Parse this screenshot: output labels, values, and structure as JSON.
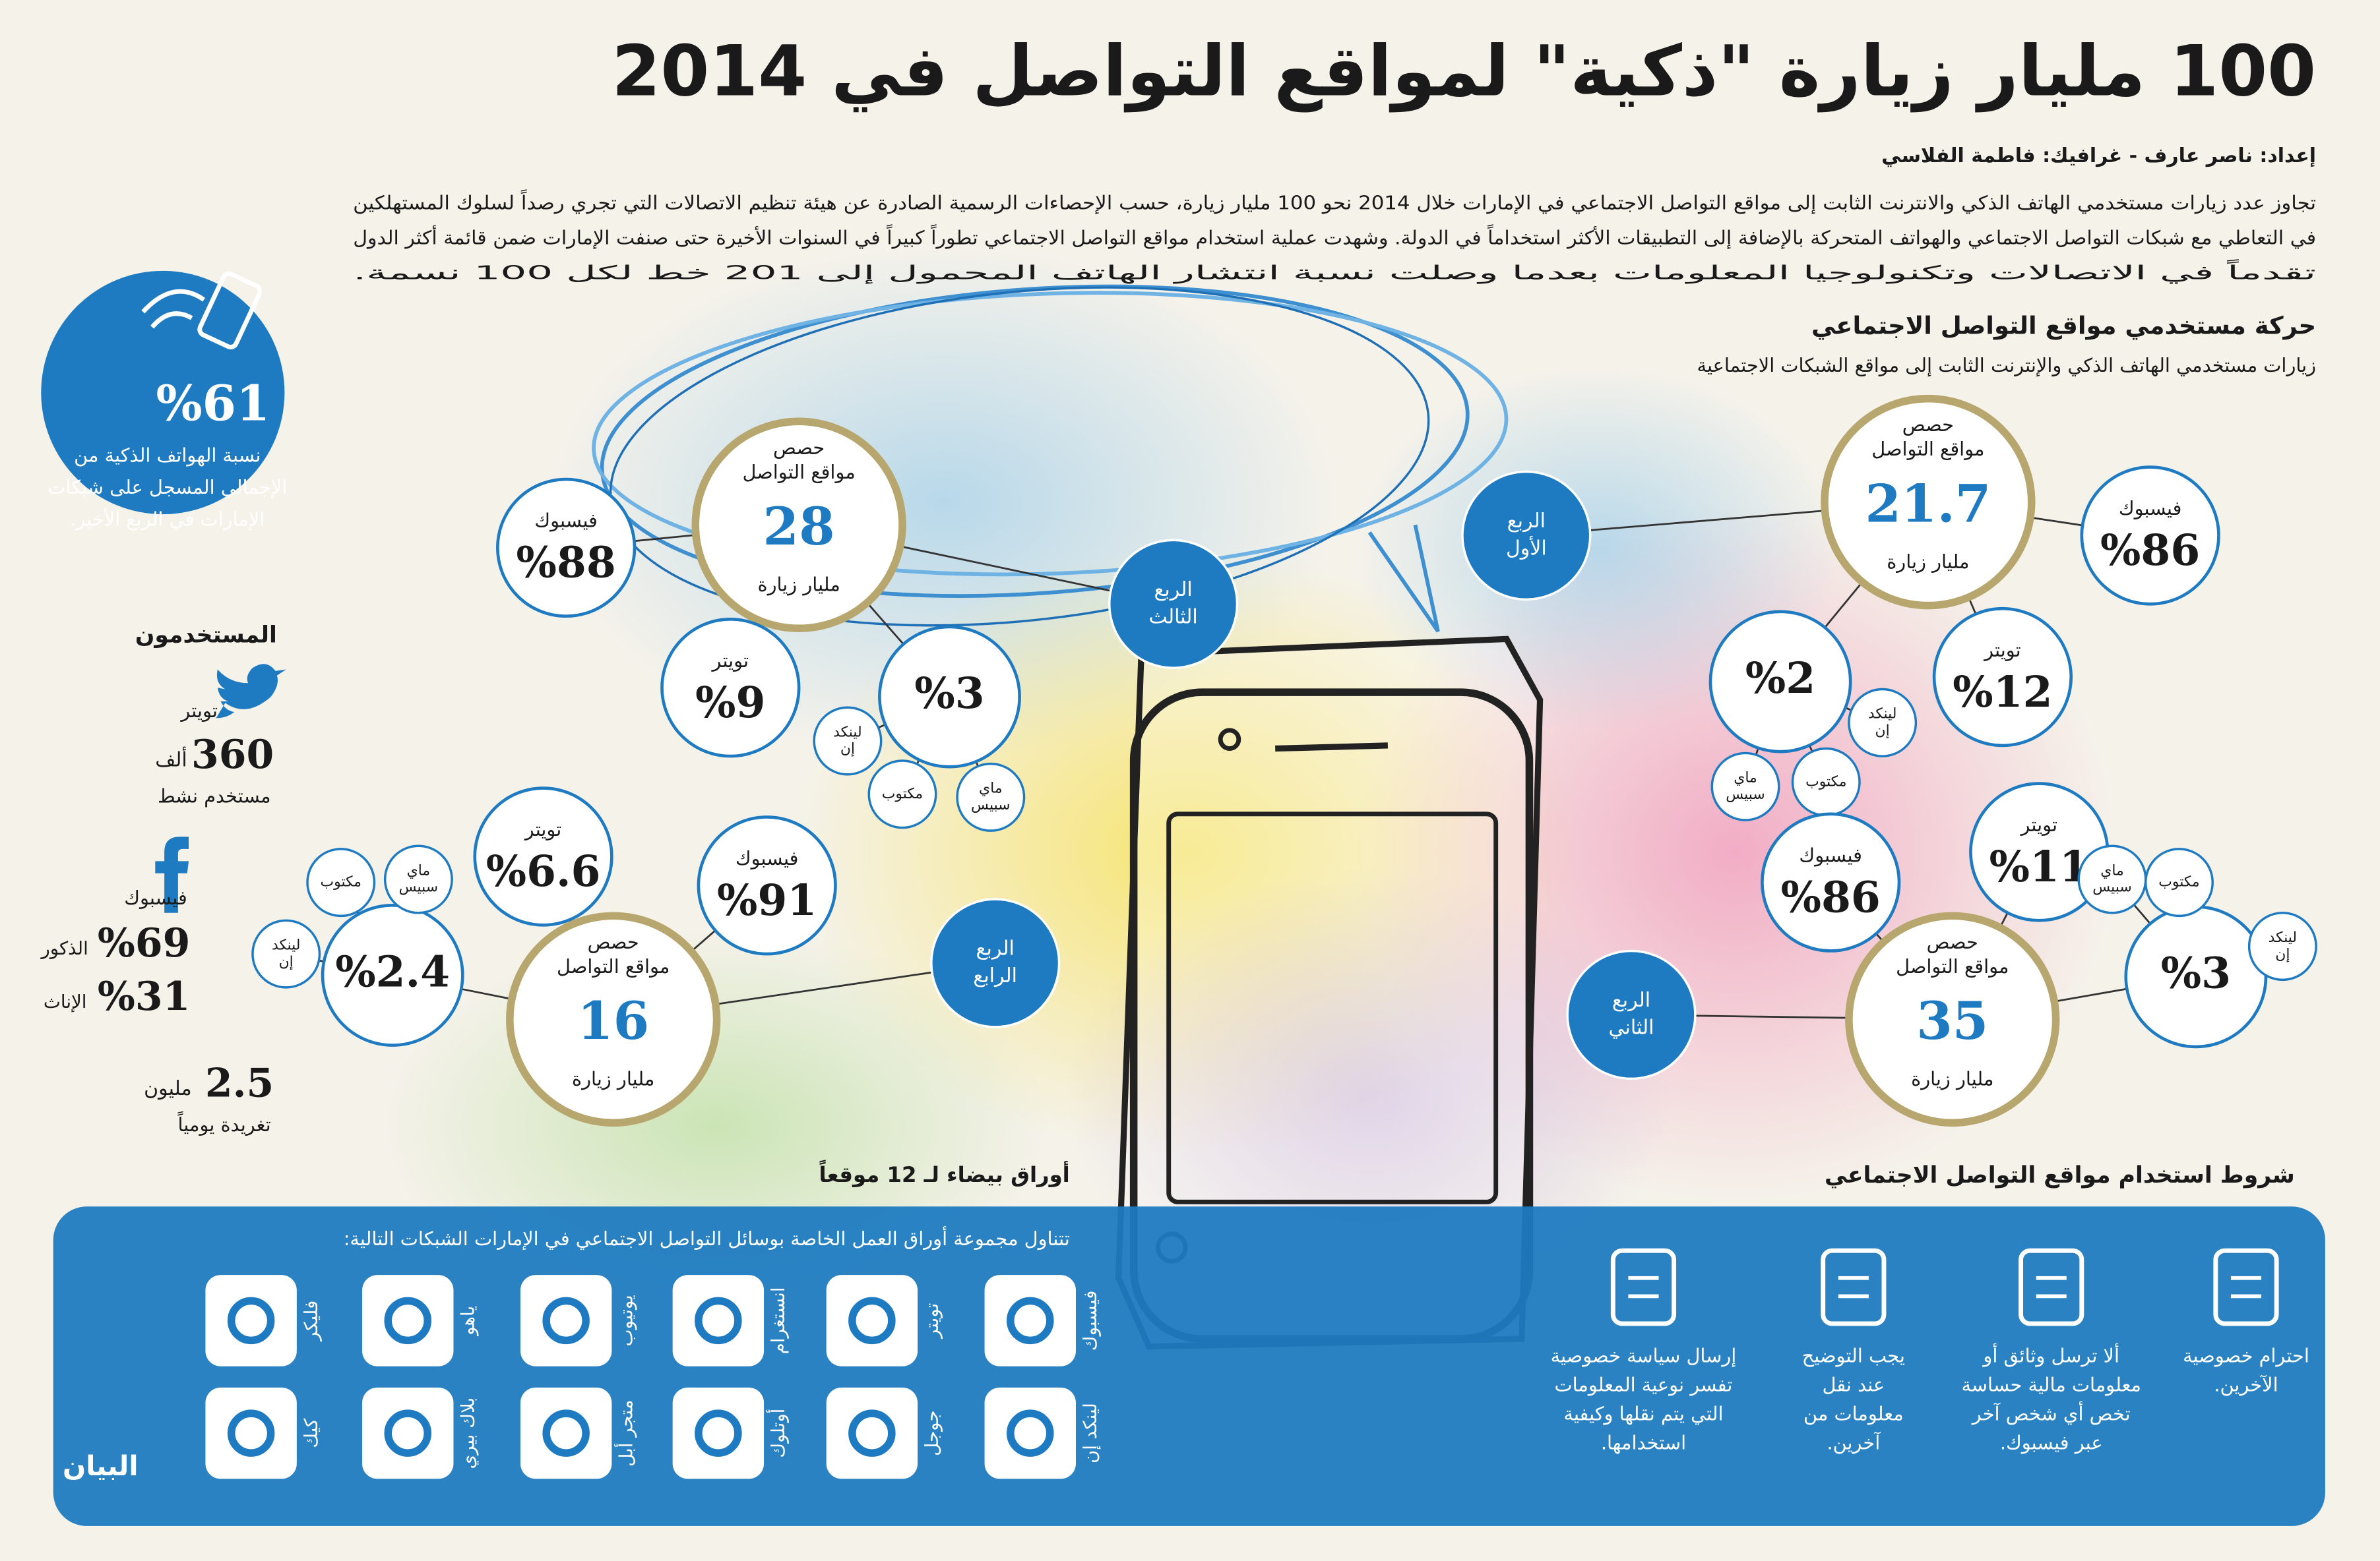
{
  "header": {
    "title": "100 مليار زيارة \"ذكية\" لمواقع التواصل في 2014",
    "credits": "إعداد: ناصر عارف - غرافيك: فاطمة الفلاسي",
    "intro": [
      "تجاوز عدد زيارات مستخدمي الهاتف الذكي والانترنت الثابت إلى مواقع التواصل الاجتماعي في الإمارات خلال 2014 نحو 100 مليار زيارة، حسب الإحصاءات الرسمية الصادرة عن هيئة تنظيم الاتصالات التي تجري رصداً لسلوك المستهلكين",
      "في التعاطي مع شبكات التواصل الاجتماعي والهواتف المتحركة بالإضافة إلى التطبيقات الأكثر استخداماً في الدولة. وشهدت عملية استخدام مواقع التواصل الاجتماعي تطوراً كبيراً في السنوات الأخيرة حتى صنفت الإمارات ضمن قائمة أكثر الدول",
      "تقدماً في الاتصالات وتكنولوجيا المعلومات بعدما وصلت نسبة انتشار الهاتف المحمول إلى 201 خط لكل 100 نسمة."
    ]
  },
  "section": {
    "title": "حركة مستخدمي مواقع التواصل الاجتماعي",
    "subtitle": "زيارات مستخدمي الهاتف الذكي والإنترنت الثابت إلى مواقع الشبكات الاجتماعية"
  },
  "quarters": [
    {
      "label": [
        "الربع",
        "الأول"
      ],
      "shares": {
        "lines": [
          "حصص",
          "مواقع التواصل"
        ],
        "value": "21.7",
        "unit": "مليار زيارة"
      },
      "facebook": {
        "name": "فيسبوك",
        "value": "%86"
      },
      "twitter": {
        "name": "تويتر",
        "value": "%12"
      },
      "others": {
        "value": "%2",
        "sites": [
          [
            "لينكد",
            "إن"
          ],
          [
            "ماي",
            "سبيس"
          ],
          [
            "مكتوب"
          ]
        ]
      }
    },
    {
      "label": [
        "الربع",
        "الثاني"
      ],
      "shares": {
        "lines": [
          "حصص",
          "مواقع التواصل"
        ],
        "value": "35",
        "unit": "مليار زيارة"
      },
      "facebook": {
        "name": "فيسبوك",
        "value": "%86"
      },
      "twitter": {
        "name": "تويتر",
        "value": "%11"
      },
      "others": {
        "value": "%3",
        "sites": [
          [
            "لينكد",
            "إن"
          ],
          [
            "ماي",
            "سبيس"
          ],
          [
            "مكتوب"
          ]
        ]
      }
    },
    {
      "label": [
        "الربع",
        "الثالث"
      ],
      "shares": {
        "lines": [
          "حصص",
          "مواقع التواصل"
        ],
        "value": "28",
        "unit": "مليار زيارة"
      },
      "facebook": {
        "name": "فيسبوك",
        "value": "%88"
      },
      "twitter": {
        "name": "تويتر",
        "value": "%9"
      },
      "others": {
        "value": "%3",
        "sites": [
          [
            "لينكد",
            "إن"
          ],
          [
            "ماي",
            "سبيس"
          ],
          [
            "مكتوب"
          ]
        ]
      }
    },
    {
      "label": [
        "الربع",
        "الرابع"
      ],
      "shares": {
        "lines": [
          "حصص",
          "مواقع التواصل"
        ],
        "value": "16",
        "unit": "مليار زيارة"
      },
      "facebook": {
        "name": "فيسبوك",
        "value": "%91"
      },
      "twitter": {
        "name": "تويتر",
        "value": "%6.6"
      },
      "others": {
        "value": "%2.4",
        "sites": [
          [
            "لينكد",
            "إن"
          ],
          [
            "ماي",
            "سبيس"
          ],
          [
            "مكتوب"
          ]
        ]
      }
    }
  ],
  "sidebar": {
    "smartphone_share": "%61",
    "smartphone_caption": [
      "نسبة الهواتف الذكية من",
      "الإجمالي المسجل على شبكات",
      "الإمارات في الربع الأخير."
    ],
    "users_title": "المستخدمون",
    "twitter": {
      "name": "تويتر",
      "value": "360",
      "unit": "ألف",
      "caption": "مستخدم نشط"
    },
    "facebook": {
      "name": "فيسبوك",
      "male_value": "%69",
      "male_label": "الذكور",
      "female_value": "%31",
      "female_label": "الإناث"
    },
    "tweets": {
      "value": "2.5",
      "unit": "مليون",
      "caption": "تغريدة يومياً"
    }
  },
  "conditions": {
    "title": "شروط استخدام مواقع التواصل الاجتماعي",
    "items": [
      [
        "احترام خصوصية",
        "الآخرين."
      ],
      [
        "ألا ترسل وثائق أو",
        "معلومات مالية حساسة",
        "تخص أي شخص آخر",
        "عبر فيسبوك."
      ],
      [
        "يجب التوضيح",
        "عند نقل",
        "معلومات من",
        "آخرين."
      ],
      [
        "إرسال سياسة خصوصية",
        "تفسر نوعية المعلومات",
        "التي يتم نقلها وكيفية",
        "استخدامها."
      ]
    ]
  },
  "white_papers": {
    "title": "أوراق بيضاء لـ 12 موقعاً",
    "intro": "تتناول مجموعة أوراق العمل الخاصة بوسائل التواصل الاجتماعي في الإمارات الشبكات التالية:",
    "sites": [
      [
        "فيسبوك",
        "تويتر",
        "انستغرام",
        "يوتيوب",
        "ياهو",
        "فليكر"
      ],
      [
        "لينكد إن",
        "جوجل",
        "أوتلوك",
        "متجر أبل",
        "بلاك بيري",
        "كيك"
      ]
    ]
  },
  "logo": "البيان"
}
